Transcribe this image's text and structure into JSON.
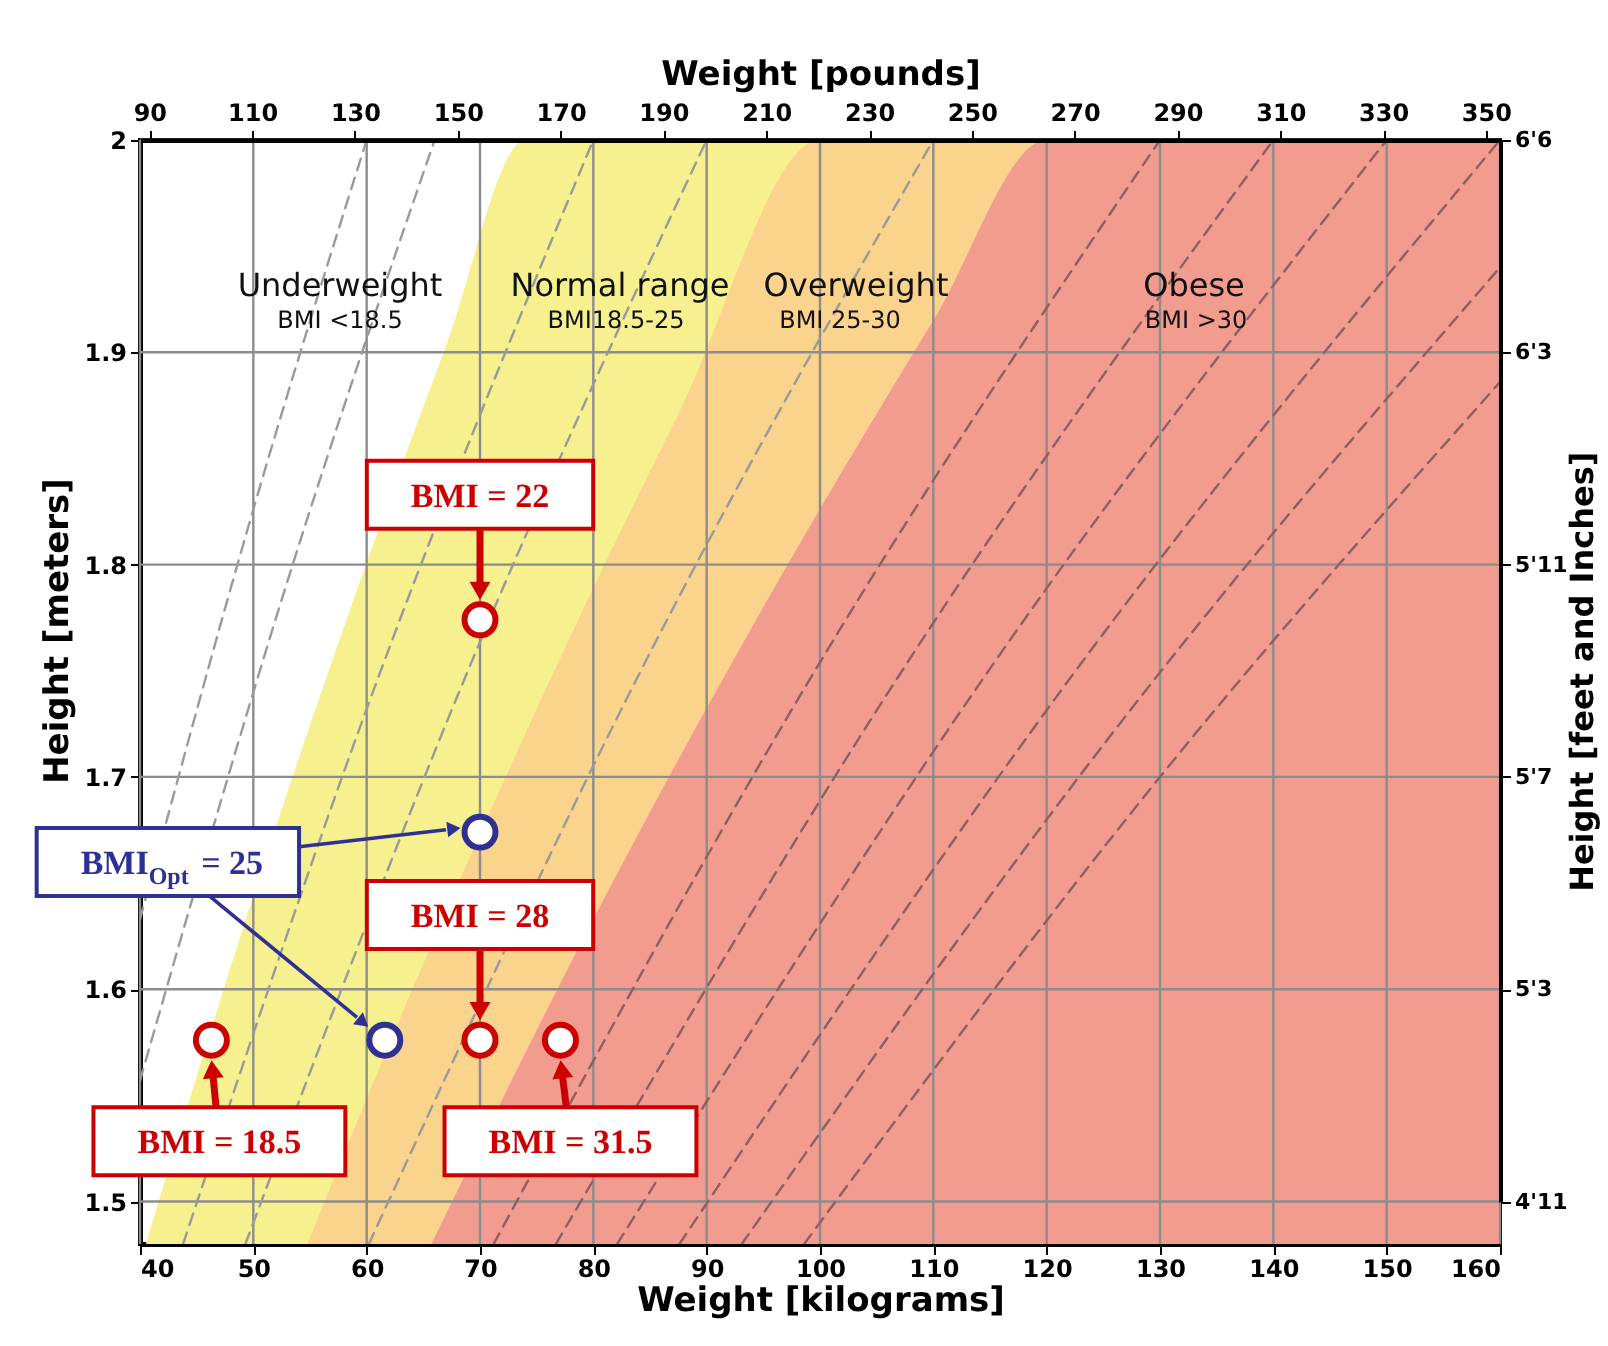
{
  "chart_data": {
    "type": "area",
    "xlabel": "Weight [kilograms]",
    "x2label": "Weight [pounds]",
    "ylabel": "Height [meters]",
    "y2label": "Height [feet and Inches]",
    "xlim": [
      40,
      160
    ],
    "xticks": [
      40,
      50,
      60,
      70,
      80,
      90,
      100,
      110,
      120,
      130,
      140,
      150,
      160
    ],
    "ylim": [
      1.48,
      2.0
    ],
    "yticks": [
      1.5,
      1.6,
      1.7,
      1.8,
      1.9,
      2
    ],
    "x2lim": [
      88.18,
      352.74
    ],
    "x2ticks": [
      90,
      110,
      130,
      150,
      170,
      190,
      210,
      230,
      250,
      270,
      290,
      310,
      330,
      350
    ],
    "y2_categories": [
      "6'6",
      "6'3",
      "5'11",
      "5'7",
      "5'3",
      "4'11"
    ],
    "grid": true,
    "line_style": "dashed",
    "series": [
      {
        "color": "#f6f08e",
        "x": [
          40.52,
          50,
          60,
          67,
          74,
          160
        ],
        "values": [
          1.48,
          1.644,
          1.801,
          1.903,
          2.0,
          2.0
        ]
      },
      {
        "color": "#fad38c",
        "x": [
          54.76,
          65,
          75,
          87.5,
          100,
          160
        ],
        "values": [
          1.48,
          1.612,
          1.732,
          1.871,
          2.0,
          2.0
        ]
      },
      {
        "color": "#f29c90",
        "x": [
          65.71,
          80,
          95,
          110,
          120,
          160
        ],
        "values": [
          1.48,
          1.633,
          1.78,
          1.915,
          2.0,
          2.0
        ]
      },
      {
        "type": "line",
        "color": "#9a9a9a",
        "x": [
          40,
          50,
          60
        ],
        "values": [
          1.633,
          1.826,
          2.0
        ]
      },
      {
        "type": "line",
        "color": "#9a9a9a",
        "x": [
          40,
          53,
          66
        ],
        "values": [
          1.557,
          1.792,
          2.0
        ]
      },
      {
        "type": "line",
        "color": "#9a9a9a",
        "x": [
          43.8,
          60,
          80
        ],
        "values": [
          1.48,
          1.732,
          2.0
        ]
      },
      {
        "type": "line",
        "color": "#9a9a9a",
        "x": [
          49.3,
          68,
          90
        ],
        "values": [
          1.48,
          1.738,
          2.0
        ]
      },
      {
        "type": "line",
        "color": "#9a9a9a",
        "x": [
          60.2,
          84,
          110
        ],
        "values": [
          1.48,
          1.748,
          2.0
        ]
      },
      {
        "type": "line",
        "color": "#8f5f5f",
        "x": [
          71.2,
          100,
          130
        ],
        "values": [
          1.48,
          1.754,
          2.0
        ]
      },
      {
        "type": "line",
        "color": "#8f5f5f",
        "x": [
          76.7,
          107,
          140
        ],
        "values": [
          1.48,
          1.748,
          2.0
        ]
      },
      {
        "type": "line",
        "color": "#8f5f5f",
        "x": [
          82.1,
          115,
          150
        ],
        "values": [
          1.48,
          1.751,
          2.0
        ]
      },
      {
        "type": "line",
        "color": "#8f5f5f",
        "x": [
          87.6,
          122,
          160
        ],
        "values": [
          1.48,
          1.746,
          2.0
        ]
      },
      {
        "type": "line",
        "color": "#8f5f5f",
        "x": [
          93.1,
          126,
          160
        ],
        "values": [
          1.48,
          1.722,
          1.94
        ]
      },
      {
        "type": "line",
        "color": "#8f5f5f",
        "x": [
          98.6,
          130,
          160
        ],
        "values": [
          1.48,
          1.7,
          1.886
        ]
      },
      {
        "type": "scatter",
        "marker": "circle",
        "color": "#cc0000",
        "x": [
          70,
          46.3,
          70,
          77.1
        ],
        "values": [
          1.774,
          1.576,
          1.576,
          1.576
        ]
      },
      {
        "type": "scatter",
        "marker": "circle",
        "color": "#2e3192",
        "x": [
          70,
          61.6
        ],
        "values": [
          1.674,
          1.576
        ]
      }
    ],
    "annotations": [
      "Underweight",
      "BMI <18.5",
      "Normal range",
      "BMI18.5-25",
      "Overweight",
      "BMI 25-30",
      "Obese",
      "BMI >30",
      {
        "text": "BMI = 22",
        "x": 70,
        "y": 1.783
      },
      {
        "text": "BMI$_{Opt}$ = 25",
        "x": 68.4,
        "y": 1.676
      },
      {
        "text": "BMI = 28",
        "x": 70,
        "y": 1.585
      },
      {
        "text": "BMI = 18.5",
        "x": 46.3,
        "y": 1.567
      },
      {
        "text": "BMI = 31.5",
        "x": 77.1,
        "y": 1.567
      }
    ]
  }
}
